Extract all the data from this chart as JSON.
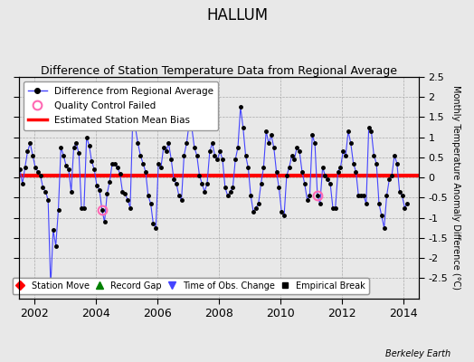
{
  "title": "HALLUM",
  "subtitle": "Difference of Station Temperature Data from Regional Average",
  "ylabel": "Monthly Temperature Anomaly Difference (°C)",
  "xlim": [
    2001.5,
    2014.5
  ],
  "ylim": [
    -3,
    2.5
  ],
  "ytick_vals": [
    -2.5,
    -2,
    -1.5,
    -1,
    -0.5,
    0,
    0.5,
    1,
    1.5,
    2,
    2.5
  ],
  "xticks": [
    2002,
    2004,
    2006,
    2008,
    2010,
    2012,
    2014
  ],
  "bias_value": 0.05,
  "line_color": "#4444FF",
  "bias_color": "#FF0000",
  "marker_color": "#000000",
  "qc_color": "#FF69B4",
  "fig_bg": "#E8E8E8",
  "ax_bg": "#E8E8E8",
  "title_fontsize": 12,
  "subtitle_fontsize": 9,
  "credit": "Berkeley Earth",
  "time_series": [
    0.2,
    -0.15,
    0.25,
    0.65,
    0.85,
    0.55,
    0.25,
    0.15,
    0.05,
    -0.25,
    -0.35,
    -0.55,
    -2.7,
    -1.3,
    -1.7,
    -0.8,
    0.75,
    0.55,
    0.3,
    0.2,
    -0.35,
    0.75,
    0.85,
    0.6,
    -0.75,
    -0.75,
    1.0,
    0.8,
    0.4,
    0.2,
    -0.2,
    -0.3,
    -0.8,
    -1.1,
    -0.4,
    -0.1,
    0.35,
    0.35,
    0.25,
    0.1,
    -0.35,
    -0.4,
    -0.55,
    -0.75,
    1.45,
    1.25,
    0.85,
    0.55,
    0.35,
    0.15,
    -0.45,
    -0.65,
    -1.15,
    -1.25,
    0.35,
    0.25,
    0.75,
    0.65,
    0.85,
    0.45,
    -0.05,
    -0.15,
    -0.45,
    -0.55,
    0.55,
    0.85,
    1.35,
    1.25,
    0.75,
    0.55,
    0.05,
    -0.15,
    -0.35,
    -0.15,
    0.65,
    0.85,
    0.55,
    0.45,
    0.65,
    0.45,
    -0.25,
    -0.45,
    -0.35,
    -0.25,
    0.45,
    0.75,
    1.75,
    1.25,
    0.55,
    0.25,
    -0.45,
    -0.85,
    -0.75,
    -0.65,
    -0.15,
    0.25,
    1.15,
    0.85,
    1.05,
    0.75,
    0.15,
    -0.25,
    -0.85,
    -0.95,
    0.05,
    0.25,
    0.55,
    0.45,
    0.75,
    0.65,
    0.15,
    -0.15,
    -0.55,
    -0.45,
    1.05,
    0.85,
    -0.45,
    -0.65,
    0.25,
    0.05,
    -0.05,
    -0.15,
    -0.75,
    -0.75,
    0.15,
    0.25,
    0.65,
    0.55,
    1.15,
    0.85,
    0.35,
    0.15,
    -0.45,
    -0.45,
    -0.45,
    -0.65,
    1.25,
    1.15,
    0.55,
    0.35,
    -0.65,
    -0.95,
    -1.25,
    -0.45,
    -0.05,
    0.05,
    0.55,
    0.35,
    -0.35,
    -0.45,
    -0.75,
    -0.65
  ],
  "qc_failed_indices": [
    12,
    32,
    116
  ],
  "start_year": 2001,
  "start_month": 7
}
